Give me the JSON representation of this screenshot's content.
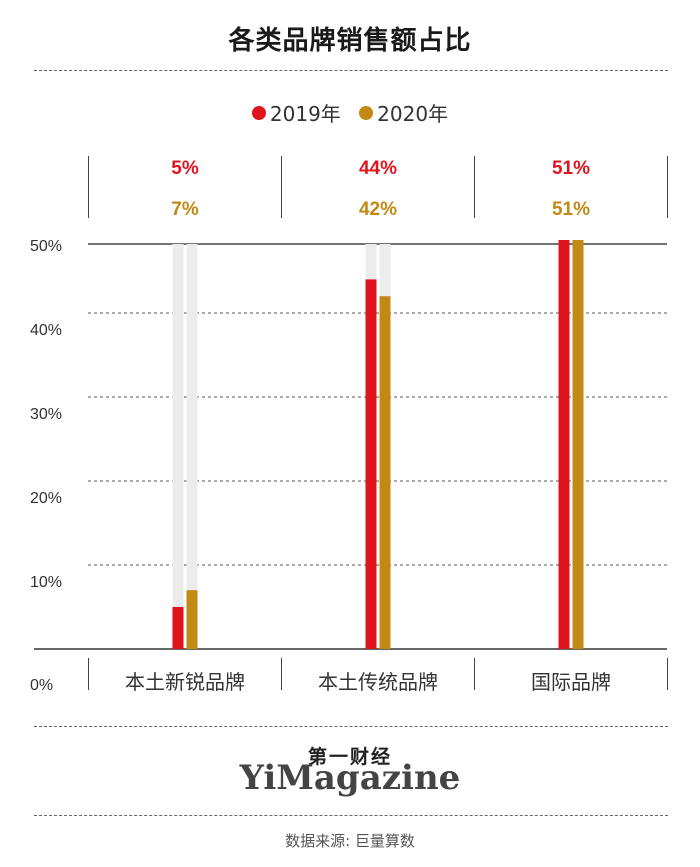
{
  "chart_data": {
    "type": "bar",
    "title": "各类品牌销售额占比",
    "categories": [
      "本土新锐品牌",
      "本土传统品牌",
      "国际品牌"
    ],
    "series": [
      {
        "name": "2019年",
        "color": "#e0141e",
        "values": [
          5,
          44,
          51
        ],
        "labels": [
          "5%",
          "44%",
          "51%"
        ]
      },
      {
        "name": "2020年",
        "color": "#c28a14",
        "values": [
          7,
          42,
          51
        ],
        "labels": [
          "7%",
          "42%",
          "51%"
        ]
      }
    ],
    "y_ticks": [
      "0%",
      "10%",
      "20%",
      "30%",
      "40%",
      "50%"
    ],
    "ylim": [
      0,
      50
    ],
    "grid": true,
    "legend_position": "top-center"
  },
  "brand": {
    "cn": "第一财经",
    "en": "YiMagazine"
  },
  "source": "数据来源: 巨量算数"
}
